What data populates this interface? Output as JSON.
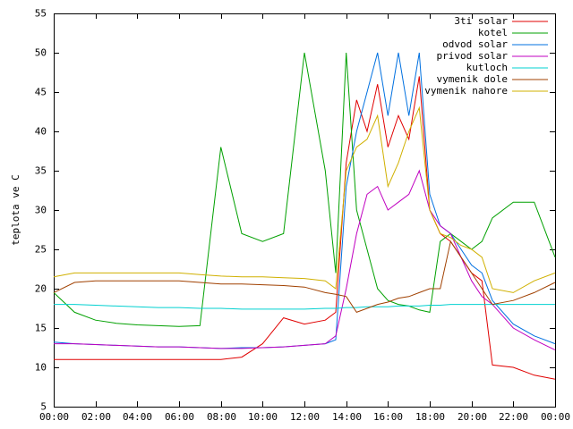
{
  "chart_data": {
    "type": "line",
    "y_label": "teplota ve C",
    "x": [
      0,
      1,
      2,
      3,
      4,
      5,
      6,
      7,
      8,
      9,
      10,
      11,
      12,
      13,
      13.5,
      14,
      14.5,
      15,
      15.5,
      16,
      16.5,
      17,
      17.5,
      18,
      18.5,
      19,
      19.5,
      20,
      20.5,
      21,
      22,
      23,
      24
    ],
    "xlim": [
      0,
      24
    ],
    "xticks": [
      {
        "value": 0,
        "label": "00:00"
      },
      {
        "value": 2,
        "label": "02:00"
      },
      {
        "value": 4,
        "label": "04:00"
      },
      {
        "value": 6,
        "label": "06:00"
      },
      {
        "value": 8,
        "label": "08:00"
      },
      {
        "value": 10,
        "label": "10:00"
      },
      {
        "value": 12,
        "label": "12:00"
      },
      {
        "value": 14,
        "label": "14:00"
      },
      {
        "value": 16,
        "label": "16:00"
      },
      {
        "value": 18,
        "label": "18:00"
      },
      {
        "value": 20,
        "label": "20:00"
      },
      {
        "value": 22,
        "label": "22:00"
      },
      {
        "value": 24,
        "label": "00:00"
      }
    ],
    "ylim": [
      5,
      55
    ],
    "yticks": [
      5,
      10,
      15,
      20,
      25,
      30,
      35,
      40,
      45,
      50,
      55
    ],
    "legend": "top-right",
    "series": [
      {
        "name": "3ti solar",
        "color": "#e00000",
        "values": [
          11,
          11,
          11,
          11,
          11,
          11,
          11,
          11,
          11,
          11.3,
          13,
          16.3,
          15.5,
          16,
          17,
          36,
          44,
          40,
          46,
          38,
          42,
          39,
          47,
          30,
          27,
          26,
          24,
          22,
          21,
          10.3,
          10,
          9,
          8.5
        ]
      },
      {
        "name": "kotel",
        "color": "#00a000",
        "values": [
          19.5,
          17,
          16,
          15.6,
          15.4,
          15.3,
          15.2,
          15.3,
          38,
          27,
          26,
          27,
          50,
          35,
          22,
          50,
          30,
          25,
          20,
          18.5,
          18,
          17.8,
          17.3,
          17,
          26,
          27,
          26,
          25,
          26,
          29,
          31,
          31,
          24
        ]
      },
      {
        "name": "odvod solar",
        "color": "#0070e0",
        "values": [
          13.2,
          13,
          12.9,
          12.8,
          12.7,
          12.6,
          12.6,
          12.5,
          12.4,
          12.5,
          12.5,
          12.6,
          12.8,
          13,
          13.5,
          33,
          40,
          45,
          50,
          42,
          50,
          42,
          50,
          32,
          28,
          27,
          25,
          23,
          22,
          18.5,
          15.5,
          14,
          13
        ]
      },
      {
        "name": "privod solar",
        "color": "#c000c0",
        "values": [
          13,
          13,
          12.9,
          12.8,
          12.7,
          12.6,
          12.6,
          12.5,
          12.4,
          12.4,
          12.5,
          12.6,
          12.8,
          13,
          14,
          20,
          27,
          32,
          33,
          30,
          31,
          32,
          35,
          30,
          28,
          27,
          24,
          21,
          19,
          18,
          15,
          13.5,
          12.2
        ]
      },
      {
        "name": "kutloch",
        "color": "#00d0d0",
        "values": [
          18,
          18,
          17.9,
          17.8,
          17.7,
          17.6,
          17.6,
          17.5,
          17.5,
          17.4,
          17.4,
          17.4,
          17.4,
          17.5,
          17.5,
          17.6,
          17.6,
          17.7,
          17.7,
          17.7,
          17.8,
          17.8,
          17.8,
          17.9,
          17.9,
          18,
          18,
          18,
          18,
          18,
          18,
          18,
          18
        ]
      },
      {
        "name": "vymenik dole",
        "color": "#a04000",
        "values": [
          19.5,
          20.8,
          21,
          21,
          21,
          21,
          21,
          20.8,
          20.6,
          20.6,
          20.5,
          20.4,
          20.2,
          19.5,
          19.3,
          19,
          17,
          17.5,
          18,
          18.3,
          18.8,
          19,
          19.5,
          20,
          20,
          26,
          24,
          22,
          20,
          18,
          18.5,
          19.5,
          20.8
        ]
      },
      {
        "name": "vymenik nahore",
        "color": "#d0b000",
        "values": [
          21.5,
          22,
          22,
          22,
          22,
          22,
          22,
          21.8,
          21.6,
          21.5,
          21.5,
          21.4,
          21.3,
          21,
          20,
          35,
          38,
          39,
          42,
          33,
          36,
          40,
          43,
          30,
          27,
          26.5,
          25.5,
          25,
          24,
          20,
          19.5,
          21,
          22
        ]
      }
    ]
  }
}
